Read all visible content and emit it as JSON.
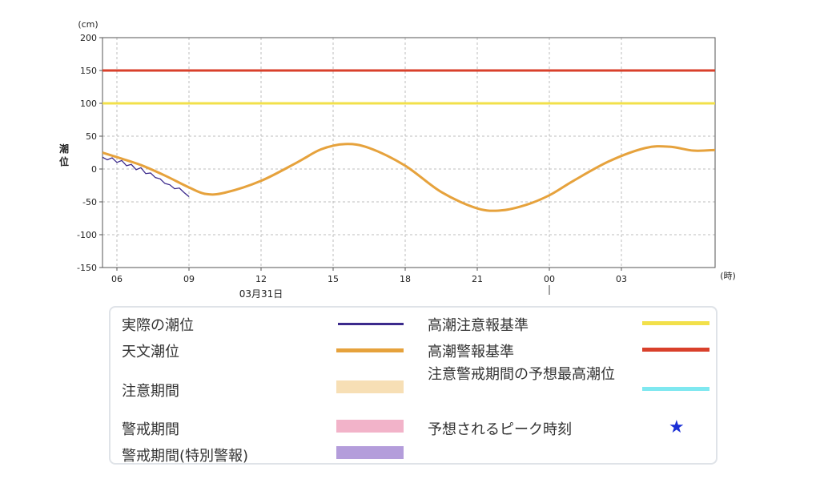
{
  "chart_data": {
    "type": "line",
    "yunit": "(cm)",
    "ylabel": "潮位",
    "xunit": "(時)",
    "date_label": "03月31日",
    "ylim": [
      -150,
      200
    ],
    "yticks": [
      200,
      150,
      100,
      50,
      0,
      -50,
      -100,
      -150
    ],
    "xlim": [
      5.4,
      30.9
    ],
    "xticks": [
      {
        "t": 6,
        "label": "06"
      },
      {
        "t": 9,
        "label": "09"
      },
      {
        "t": 12,
        "label": "12"
      },
      {
        "t": 15,
        "label": "15"
      },
      {
        "t": 18,
        "label": "18"
      },
      {
        "t": 21,
        "label": "21"
      },
      {
        "t": 24,
        "label": "00"
      },
      {
        "t": 27,
        "label": "03"
      }
    ],
    "grid": true,
    "thresholds": [
      {
        "name": "高潮警報基準",
        "value": 150,
        "color": "#d9402b"
      },
      {
        "name": "高潮注意報基準",
        "value": 100,
        "color": "#f2e04a"
      }
    ],
    "series": [
      {
        "name": "天文潮位",
        "color": "#e6a23c",
        "x": [
          5.4,
          6,
          7,
          8,
          9,
          9.7,
          10.5,
          12,
          13.5,
          14.5,
          15.5,
          16.5,
          18,
          19.5,
          21,
          22,
          23,
          24,
          25,
          26.5,
          28,
          29,
          30,
          30.9
        ],
        "y": [
          25,
          18,
          6,
          -10,
          -28,
          -38,
          -36,
          -18,
          10,
          30,
          38,
          32,
          5,
          -35,
          -60,
          -63,
          -55,
          -40,
          -18,
          12,
          32,
          34,
          28,
          29
        ]
      },
      {
        "name": "実際の潮位",
        "color": "#3b2a8c",
        "x": [
          5.4,
          5.6,
          5.8,
          6.0,
          6.2,
          6.4,
          6.6,
          6.8,
          7.0,
          7.2,
          7.4,
          7.6,
          7.8,
          8.0,
          8.2,
          8.4,
          8.6,
          8.8,
          9.0
        ],
        "y": [
          18,
          14,
          17,
          10,
          13,
          5,
          7,
          -1,
          2,
          -7,
          -6,
          -13,
          -15,
          -22,
          -24,
          -30,
          -29,
          -36,
          -42
        ]
      }
    ]
  },
  "legend": {
    "items": [
      {
        "label": "実際の潮位",
        "kind": "line",
        "color": "#3b2a8c"
      },
      {
        "label": "天文潮位",
        "kind": "line",
        "color": "#e6a23c"
      },
      {
        "label": "注意期間",
        "kind": "swatch",
        "color": "#f7dfb5"
      },
      {
        "label": "警戒期間",
        "kind": "swatch",
        "color": "#f2b3c9"
      },
      {
        "label": "警戒期間(特別警報)",
        "kind": "swatch",
        "color": "#b49ddb"
      },
      {
        "label": "高潮注意報基準",
        "kind": "line",
        "color": "#f2e04a"
      },
      {
        "label": "高潮警報基準",
        "kind": "line",
        "color": "#d9402b"
      },
      {
        "label": "注意警戒期間の予想最高潮位",
        "kind": "line",
        "color": "#7fe8f0"
      },
      {
        "label": "予想されるピーク時刻",
        "kind": "star",
        "color": "#1a2fd6",
        "symbol": "★"
      }
    ]
  }
}
